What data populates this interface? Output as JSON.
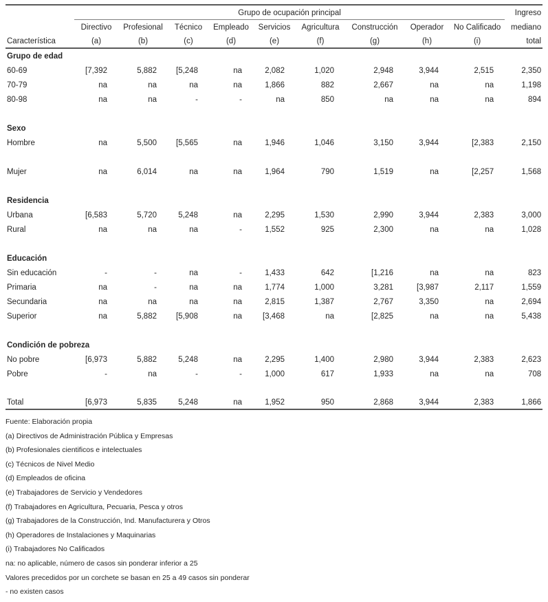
{
  "table": {
    "group_header": "Grupo de ocupación principal",
    "income_header_lines": [
      "Ingreso",
      "mediano",
      "total"
    ],
    "row_label_header": "Característica",
    "columns": [
      {
        "name": "Directivo",
        "key": "(a)"
      },
      {
        "name": "Profesional",
        "key": "(b)"
      },
      {
        "name": "Técnico",
        "key": "(c)"
      },
      {
        "name": "Empleado",
        "key": "(d)"
      },
      {
        "name": "Servicios",
        "key": "(e)"
      },
      {
        "name": "Agricultura",
        "key": "(f)"
      },
      {
        "name": "Construcción",
        "key": "(g)"
      },
      {
        "name": "Operador",
        "key": "(h)"
      },
      {
        "name": "No Calificado",
        "key": "(i)"
      }
    ],
    "sections": [
      {
        "title": "Grupo de edad",
        "rows": [
          {
            "label": "60-69",
            "values": [
              "[7,392",
              "5,882",
              "[5,248",
              "na",
              "2,082",
              "1,020",
              "2,948",
              "3,944",
              "2,515",
              "2,350"
            ]
          },
          {
            "label": "70-79",
            "values": [
              "na",
              "na",
              "na",
              "na",
              "1,866",
              "882",
              "2,667",
              "na",
              "na",
              "1,198"
            ]
          },
          {
            "label": "80-98",
            "values": [
              "na",
              "na",
              "-",
              "-",
              "na",
              "850",
              "na",
              "na",
              "na",
              "894"
            ]
          }
        ]
      },
      {
        "title": "Sexo",
        "rows": [
          {
            "label": "Hombre",
            "values": [
              "na",
              "5,500",
              "[5,565",
              "na",
              "1,946",
              "1,046",
              "3,150",
              "3,944",
              "[2,383",
              "2,150"
            ],
            "gap_after": true
          },
          {
            "label": "Mujer",
            "values": [
              "na",
              "6,014",
              "na",
              "na",
              "1,964",
              "790",
              "1,519",
              "na",
              "[2,257",
              "1,568"
            ]
          }
        ]
      },
      {
        "title": "Residencia",
        "rows": [
          {
            "label": "Urbana",
            "values": [
              "[6,583",
              "5,720",
              "5,248",
              "na",
              "2,295",
              "1,530",
              "2,990",
              "3,944",
              "2,383",
              "3,000"
            ]
          },
          {
            "label": "Rural",
            "values": [
              "na",
              "na",
              "na",
              "-",
              "1,552",
              "925",
              "2,300",
              "na",
              "na",
              "1,028"
            ]
          }
        ]
      },
      {
        "title": "Educación",
        "rows": [
          {
            "label": "Sin educación",
            "values": [
              "-",
              "-",
              "na",
              "-",
              "1,433",
              "642",
              "[1,216",
              "na",
              "na",
              "823"
            ]
          },
          {
            "label": "Primaria",
            "values": [
              "na",
              "-",
              "na",
              "na",
              "1,774",
              "1,000",
              "3,281",
              "[3,987",
              "2,117",
              "1,559"
            ]
          },
          {
            "label": "Secundaria",
            "values": [
              "na",
              "na",
              "na",
              "na",
              "2,815",
              "1,387",
              "2,767",
              "3,350",
              "na",
              "2,694"
            ]
          },
          {
            "label": "Superior",
            "values": [
              "na",
              "5,882",
              "[5,908",
              "na",
              "[3,468",
              "na",
              "[2,825",
              "na",
              "na",
              "5,438"
            ]
          }
        ]
      },
      {
        "title": "Condición de pobreza",
        "rows": [
          {
            "label": "No pobre",
            "values": [
              "[6,973",
              "5,882",
              "5,248",
              "na",
              "2,295",
              "1,400",
              "2,980",
              "3,944",
              "2,383",
              "2,623"
            ]
          },
          {
            "label": "Pobre",
            "values": [
              "-",
              "na",
              "-",
              "-",
              "1,000",
              "617",
              "1,933",
              "na",
              "na",
              "708"
            ]
          }
        ]
      }
    ],
    "total_row": {
      "label": "Total",
      "values": [
        "[6,973",
        "5,835",
        "5,248",
        "na",
        "1,952",
        "950",
        "2,868",
        "3,944",
        "2,383",
        "1,866"
      ]
    }
  },
  "footnotes": [
    "Fuente: Elaboración propia",
    "(a) Directivos de Administración Pública y Empresas",
    "(b) Profesionales cientificos e intelectuales",
    "(c) Técnicos de Nivel Medio",
    "(d) Empleados de oficina",
    "(e) Trabajadores de Servicio y Vendedores",
    "(f) Trabajadores en Agricultura, Pecuaria, Pesca y otros",
    "(g) Trabajadores de la Construcción, Ind. Manufacturera y Otros",
    "(h) Operadores de Instalaciones y Maquinarias",
    "(i) Trabajadores No Calificados",
    "na: no aplicable, número de casos sin ponderar inferior a 25",
    "Valores precedidos por un corchete se basan en 25 a 49 casos sin ponderar",
    "- no existen casos"
  ]
}
